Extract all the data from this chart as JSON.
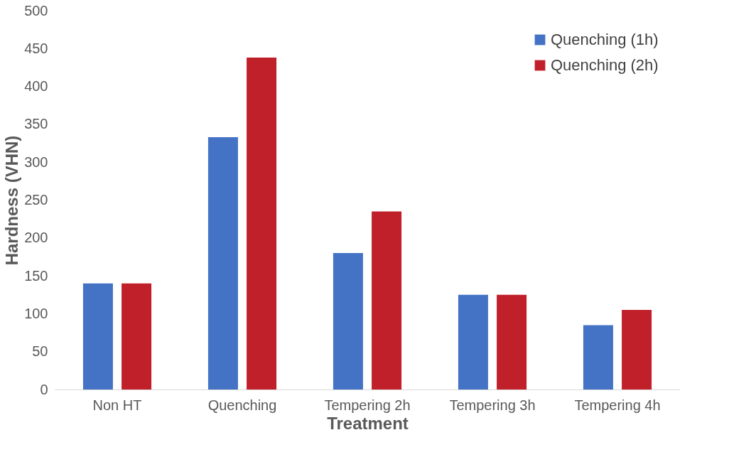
{
  "chart_data": {
    "type": "bar",
    "xlabel": "Treatment",
    "ylabel": "Hardness (VHN)",
    "categories": [
      "Non HT",
      "Quenching",
      "Tempering 2h",
      "Tempering 3h",
      "Tempering 4h"
    ],
    "series": [
      {
        "name": "Quenching (1h)",
        "color": "#4472c4",
        "values": [
          140,
          333,
          180,
          125,
          85
        ]
      },
      {
        "name": "Quenching (2h)",
        "color": "#c0202a",
        "values": [
          140,
          438,
          235,
          125,
          105
        ]
      }
    ],
    "ylim": [
      0,
      500
    ],
    "yticks": [
      0,
      50,
      100,
      150,
      200,
      250,
      300,
      350,
      400,
      450,
      500
    ],
    "grid": false,
    "legend": "top right"
  }
}
